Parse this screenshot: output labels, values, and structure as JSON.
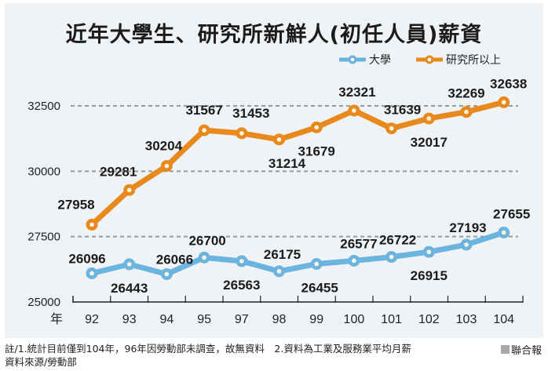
{
  "title": "近年大學生、研究所新鮮人(初任人員)薪資",
  "legend": {
    "items": [
      {
        "label": "大學",
        "color": "#6cb4e0"
      },
      {
        "label": "研究所以上",
        "color": "#e8891e"
      }
    ]
  },
  "footer": {
    "note": "註/1.統計目前僅到104年，96年因勞動部未調查，故無資料　2.資料為工業及服務業平均月薪",
    "source": "資料來源/勞動部",
    "brand": "聯合報"
  },
  "colors": {
    "university": "#6cb4e0",
    "graduate": "#e8891e",
    "background": "#eff3f6",
    "grid": "#9a9a9a"
  },
  "chart_data": {
    "type": "line",
    "title": "近年大學生、研究所新鮮人(初任人員)薪資",
    "xlabel": "年",
    "ylabel": "",
    "x": [
      "92",
      "93",
      "94",
      "95",
      "97",
      "98",
      "99",
      "100",
      "101",
      "102",
      "103",
      "104"
    ],
    "series": [
      {
        "name": "大學",
        "color": "#6cb4e0",
        "values": [
          26096,
          26443,
          26066,
          26700,
          26563,
          26175,
          26455,
          26577,
          26722,
          26915,
          27193,
          27655
        ]
      },
      {
        "name": "研究所以上",
        "color": "#e8891e",
        "values": [
          27958,
          29281,
          30204,
          31567,
          31453,
          31214,
          31679,
          32321,
          31639,
          32017,
          32269,
          32638
        ]
      }
    ],
    "yticks": [
      25000,
      27500,
      30000,
      32500
    ],
    "ylim": [
      25000,
      32900
    ],
    "grid": "horizontal dashed",
    "legend_position": "top-right",
    "annotations": [
      "註/1.統計目前僅到104年，96年因勞動部未調查，故無資料",
      "2.資料為工業及服務業平均月薪",
      "資料來源/勞動部"
    ]
  }
}
